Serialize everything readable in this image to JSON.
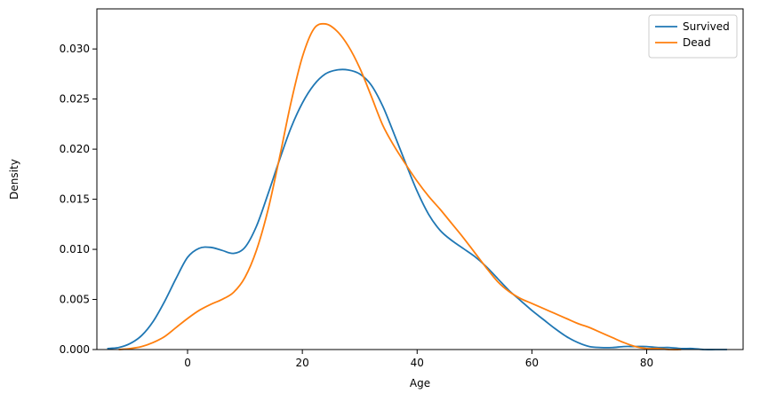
{
  "chart_data": {
    "type": "line",
    "title": "",
    "xlabel": "Age",
    "ylabel": "Density",
    "xlim": [
      -15.8,
      96.8
    ],
    "ylim": [
      0,
      0.034
    ],
    "xticks": [
      0,
      20,
      40,
      60,
      80
    ],
    "xtick_labels": [
      "0",
      "20",
      "40",
      "60",
      "80"
    ],
    "yticks": [
      0,
      0.005,
      0.01,
      0.015,
      0.02,
      0.025,
      0.03
    ],
    "ytick_labels": [
      "0.000",
      "0.005",
      "0.010",
      "0.015",
      "0.020",
      "0.025",
      "0.030"
    ],
    "grid": false,
    "legend_position": "top-right",
    "series": [
      {
        "name": "Survived",
        "color": "#1f77b4",
        "x": [
          -14,
          -12,
          -10,
          -8,
          -6,
          -4,
          -2,
          0,
          2,
          4,
          6,
          8,
          10,
          12,
          14,
          16,
          18,
          20,
          22,
          24,
          26,
          28,
          30,
          32,
          34,
          36,
          38,
          40,
          42,
          44,
          46,
          48,
          50,
          52,
          54,
          56,
          58,
          60,
          62,
          64,
          66,
          68,
          70,
          72,
          74,
          76,
          78,
          80,
          82,
          84,
          86,
          88,
          90,
          92,
          94
        ],
        "y": [
          0.0001,
          0.0002,
          0.0006,
          0.0014,
          0.0028,
          0.0048,
          0.0071,
          0.0092,
          0.0101,
          0.0102,
          0.0099,
          0.0096,
          0.0102,
          0.0123,
          0.0155,
          0.0189,
          0.0221,
          0.0246,
          0.0264,
          0.0275,
          0.0279,
          0.0279,
          0.0275,
          0.0264,
          0.0243,
          0.0215,
          0.0186,
          0.0158,
          0.0135,
          0.0119,
          0.0109,
          0.0101,
          0.0093,
          0.0083,
          0.0071,
          0.0059,
          0.0049,
          0.0039,
          0.003,
          0.0021,
          0.0013,
          0.0007,
          0.0003,
          0.0002,
          0.0002,
          0.0003,
          0.0003,
          0.0003,
          0.0002,
          0.0002,
          0.0001,
          0.0001,
          0.0,
          0.0,
          0.0
        ]
      },
      {
        "name": "Dead",
        "color": "#ff7f0e",
        "x": [
          -12,
          -10,
          -8,
          -6,
          -4,
          -2,
          0,
          2,
          4,
          6,
          8,
          10,
          12,
          14,
          16,
          18,
          20,
          22,
          24,
          26,
          28,
          30,
          32,
          34,
          36,
          38,
          40,
          42,
          44,
          46,
          48,
          50,
          52,
          54,
          56,
          58,
          60,
          62,
          64,
          66,
          68,
          70,
          72,
          74,
          76,
          78,
          80,
          82,
          84,
          86
        ],
        "y": [
          0.0,
          0.0001,
          0.0003,
          0.0007,
          0.0013,
          0.0022,
          0.0031,
          0.0039,
          0.0045,
          0.005,
          0.0057,
          0.0072,
          0.0099,
          0.0139,
          0.0191,
          0.0246,
          0.0292,
          0.032,
          0.0325,
          0.0318,
          0.0303,
          0.0281,
          0.0253,
          0.0224,
          0.0203,
          0.0185,
          0.0168,
          0.0153,
          0.014,
          0.0126,
          0.0112,
          0.0097,
          0.0082,
          0.0068,
          0.0058,
          0.0051,
          0.0046,
          0.0041,
          0.0036,
          0.0031,
          0.0026,
          0.0022,
          0.0017,
          0.0012,
          0.0007,
          0.0003,
          0.0001,
          0.0001,
          0.0,
          0.0
        ]
      }
    ]
  }
}
